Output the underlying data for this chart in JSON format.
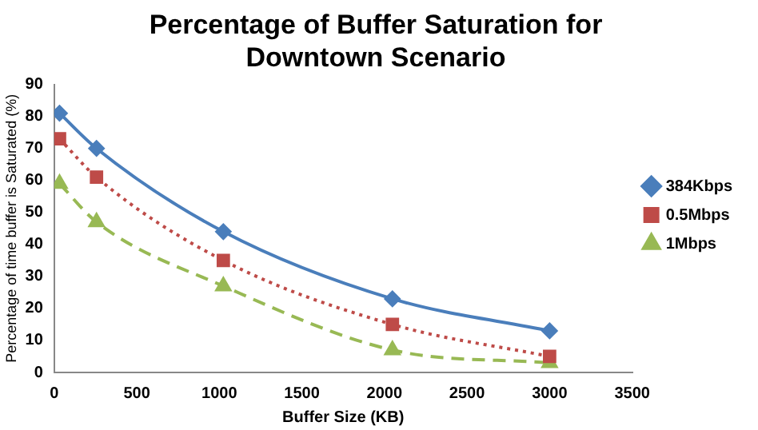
{
  "chart_data": {
    "type": "line",
    "title": "Percentage of Buffer Saturation for Downtown Scenario",
    "xlabel": "Buffer Size (KB)",
    "ylabel": "Percentage of time buffer is Saturated (%)",
    "x": [
      32,
      256,
      1024,
      2048,
      3000
    ],
    "series": [
      {
        "name": "384Kbps",
        "color": "#4a7ebb",
        "values": [
          81,
          70,
          44,
          23,
          13
        ],
        "marker": "diamond",
        "line_style": "solid"
      },
      {
        "name": "0.5Mbps",
        "color": "#be4b48",
        "values": [
          73,
          61,
          35,
          15,
          5
        ],
        "marker": "square",
        "line_style": "dotted"
      },
      {
        "name": "1Mbps",
        "color": "#98b954",
        "values": [
          59,
          47,
          27,
          7,
          3
        ],
        "marker": "triangle",
        "line_style": "dashed"
      }
    ],
    "xlim": [
      0,
      3500
    ],
    "xticks": [
      0,
      500,
      1000,
      1500,
      2000,
      2500,
      3000,
      3500
    ],
    "ylim": [
      0,
      90
    ],
    "yticks": [
      0,
      10,
      20,
      30,
      40,
      50,
      60,
      70,
      80,
      90
    ],
    "grid": false,
    "legend": "right"
  }
}
